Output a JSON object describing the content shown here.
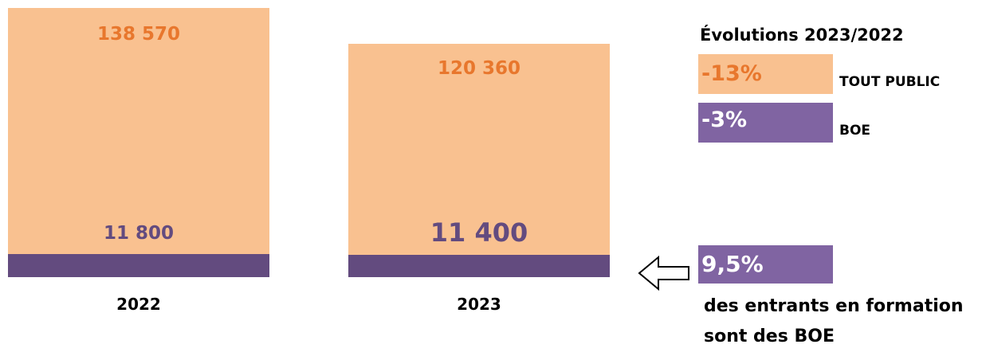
{
  "chart_data": {
    "type": "bar",
    "stacked": true,
    "categories": [
      "2022",
      "2023"
    ],
    "series": [
      {
        "name": "TOUT PUBLIC",
        "values": [
          138570,
          120360
        ],
        "labels": [
          "138 570",
          "120 360"
        ],
        "color": "#f9c190",
        "label_color": "#e8772d"
      },
      {
        "name": "BOE",
        "values": [
          11800,
          11400
        ],
        "labels": [
          "11 800",
          "11 400"
        ],
        "color": "#634b7f",
        "label_color": "#634b7f"
      }
    ]
  },
  "evolutions": {
    "title": "Évolutions 2023/2022",
    "items": [
      {
        "value": "-13%",
        "label": "TOUT PUBLIC",
        "bg": "#f9c190",
        "fg": "#e8772d"
      },
      {
        "value": "-3%",
        "label": "BOE",
        "bg": "#8064a2",
        "fg": "#ffffff"
      }
    ]
  },
  "share": {
    "value": "9,5%",
    "line1": "des entrants en formation",
    "line2": "sont des BOE",
    "bg": "#8064a2",
    "icon": "arrow-left-icon"
  }
}
